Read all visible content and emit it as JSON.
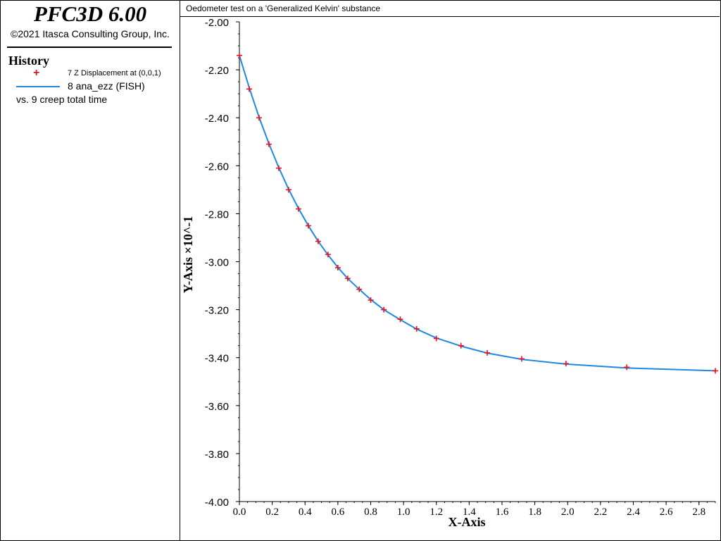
{
  "app": {
    "title": "PFC3D 6.00",
    "copyright": "©2021 Itasca Consulting Group, Inc."
  },
  "history": {
    "title": "History",
    "legend": [
      {
        "label": "7 Z Displacement at (0,0,1)",
        "marker": "plus",
        "color": "#e8141e"
      },
      {
        "label": "8 ana_ezz (FISH)",
        "marker": "line",
        "color": "#1e88e5"
      }
    ],
    "vs_label": "vs. 9 creep total time"
  },
  "plot": {
    "title": "Oedometer test on a 'Generalized Kelvin' substance"
  },
  "chart_data": {
    "type": "line",
    "xlabel": "X-Axis",
    "ylabel": "Y-Axis ×10^-1",
    "xlim": [
      0.0,
      2.9
    ],
    "ylim": [
      -4.0,
      -2.0
    ],
    "x_ticks": [
      "0.0",
      "0.2",
      "0.4",
      "0.6",
      "0.8",
      "1.0",
      "1.2",
      "1.4",
      "1.6",
      "1.8",
      "2.0",
      "2.2",
      "2.4",
      "2.6",
      "2.8"
    ],
    "y_ticks": [
      "-2.00",
      "-2.20",
      "-2.40",
      "-2.60",
      "-2.80",
      "-3.00",
      "-3.20",
      "-3.40",
      "-3.60",
      "-3.80",
      "-4.00"
    ],
    "grid": false,
    "series": [
      {
        "name": "7 Z Displacement at (0,0,1)",
        "color": "#e8141e",
        "marker": "plus",
        "x": [
          0.0,
          0.06,
          0.12,
          0.18,
          0.24,
          0.3,
          0.36,
          0.42,
          0.48,
          0.54,
          0.6,
          0.66,
          0.73,
          0.8,
          0.88,
          0.98,
          1.08,
          1.2,
          1.35,
          1.51,
          1.72,
          1.99,
          2.36,
          2.9
        ],
        "y": [
          -2.14,
          -2.28,
          -2.4,
          -2.51,
          -2.61,
          -2.7,
          -2.78,
          -2.85,
          -2.915,
          -2.97,
          -3.025,
          -3.07,
          -3.115,
          -3.16,
          -3.2,
          -3.24,
          -3.28,
          -3.32,
          -3.35,
          -3.38,
          -3.405,
          -3.425,
          -3.44,
          -3.455
        ]
      },
      {
        "name": "8 ana_ezz (FISH)",
        "color": "#1e88e5",
        "marker": "line",
        "x": [
          0.0,
          0.06,
          0.12,
          0.18,
          0.24,
          0.3,
          0.36,
          0.42,
          0.48,
          0.54,
          0.6,
          0.66,
          0.73,
          0.8,
          0.88,
          0.98,
          1.08,
          1.2,
          1.35,
          1.51,
          1.72,
          1.99,
          2.36,
          2.9
        ],
        "y": [
          -2.14,
          -2.275,
          -2.398,
          -2.508,
          -2.608,
          -2.698,
          -2.778,
          -2.85,
          -2.915,
          -2.972,
          -3.024,
          -3.07,
          -3.115,
          -3.158,
          -3.2,
          -3.242,
          -3.281,
          -3.318,
          -3.352,
          -3.381,
          -3.407,
          -3.427,
          -3.443,
          -3.455
        ]
      }
    ]
  }
}
